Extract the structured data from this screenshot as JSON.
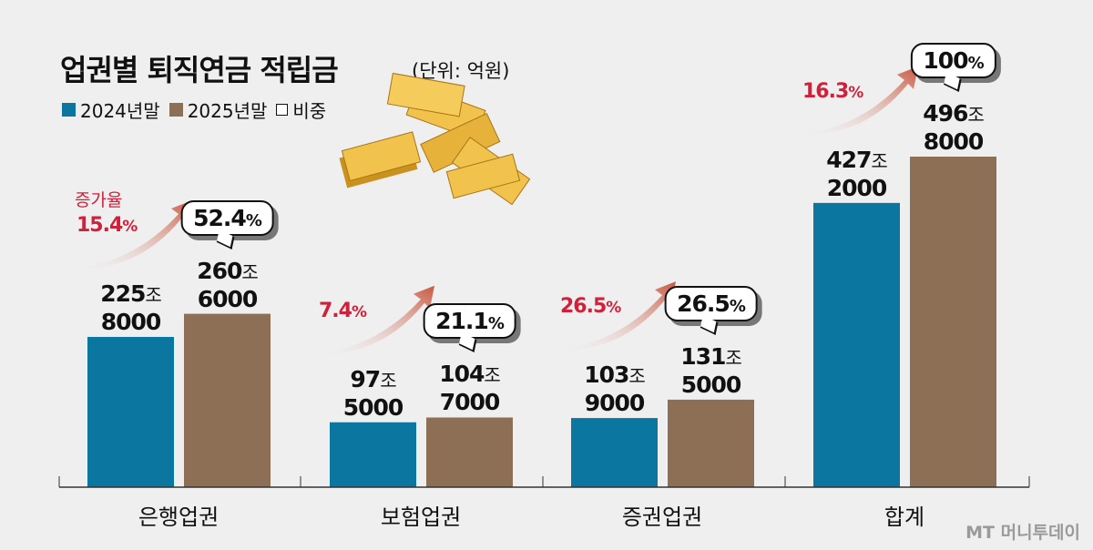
{
  "header": {
    "title": "업권별 퇴직연금 적립금",
    "unit": "(단위: 억원)"
  },
  "legend": [
    {
      "label": "2024년말",
      "color": "#0b76a0"
    },
    {
      "label": "2025년말",
      "color": "#8d6f56"
    },
    {
      "label": "비중",
      "color": "#ffffff"
    }
  ],
  "growth_label": "증가율",
  "watermark": "MT 머니투데이",
  "chart_data": {
    "type": "bar",
    "title": "업권별 퇴직연금 적립금",
    "unit": "억원",
    "categories": [
      "은행업권",
      "보험업권",
      "증권업권",
      "합계"
    ],
    "series": [
      {
        "name": "2024년말",
        "color": "#0b76a0",
        "values": [
          2258000,
          975000,
          1039000,
          4272000
        ],
        "labels": [
          [
            "225조",
            "8000"
          ],
          [
            "97조",
            "5000"
          ],
          [
            "103조",
            "9000"
          ],
          [
            "427조",
            "2000"
          ]
        ]
      },
      {
        "name": "2025년말",
        "color": "#8d6f56",
        "values": [
          2606000,
          1047000,
          1315000,
          4968000
        ],
        "labels": [
          [
            "260조",
            "6000"
          ],
          [
            "104조",
            "7000"
          ],
          [
            "131조",
            "5000"
          ],
          [
            "496조",
            "8000"
          ]
        ]
      }
    ],
    "growth_rate": [
      "15.4",
      "7.4",
      "26.5",
      "16.3"
    ],
    "share": [
      "52.4",
      "21.1",
      "26.5",
      "100"
    ],
    "percent_sign": "%",
    "ylim": [
      0,
      5000000
    ]
  }
}
